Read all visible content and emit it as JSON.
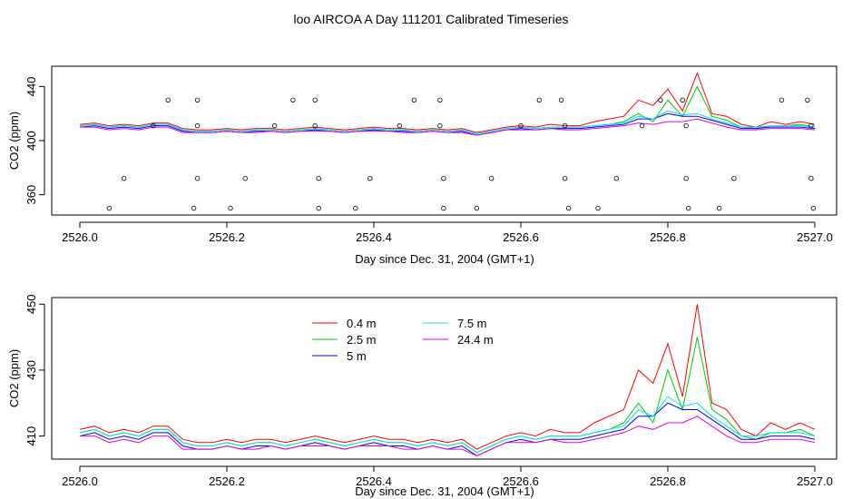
{
  "title": "loo AIRCOA A  Day 111201  Calibrated Timeseries",
  "legend": {
    "items": [
      {
        "label": "0.4 m",
        "color": "#ff0000"
      },
      {
        "label": "2.5 m",
        "color": "#00cc00"
      },
      {
        "label": "5 m",
        "color": "#0000ff"
      },
      {
        "label": "7.5 m",
        "color": "#00e5e5"
      },
      {
        "label": "24.4 m",
        "color": "#e600e6"
      }
    ]
  },
  "chart_data": [
    {
      "type": "line",
      "xlabel": "Day since Dec. 31, 2004 (GMT+1)",
      "ylabel": "CO2 (ppm)",
      "xlim": [
        2526.0,
        2527.0
      ],
      "ylim": [
        345,
        455
      ],
      "xticks": [
        "2526.0",
        "2526.2",
        "2526.4",
        "2526.6",
        "2526.8",
        "2527.0"
      ],
      "yticks": [
        "360",
        "400",
        "440"
      ],
      "ytick_values": [
        360,
        400,
        440
      ],
      "x": [
        2526.0,
        2526.02,
        2526.04,
        2526.06,
        2526.08,
        2526.1,
        2526.12,
        2526.14,
        2526.16,
        2526.18,
        2526.2,
        2526.22,
        2526.24,
        2526.26,
        2526.28,
        2526.3,
        2526.32,
        2526.34,
        2526.36,
        2526.38,
        2526.4,
        2526.42,
        2526.44,
        2526.46,
        2526.48,
        2526.5,
        2526.52,
        2526.54,
        2526.56,
        2526.58,
        2526.6,
        2526.62,
        2526.64,
        2526.66,
        2526.68,
        2526.7,
        2526.72,
        2526.74,
        2526.76,
        2526.78,
        2526.8,
        2526.82,
        2526.84,
        2526.86,
        2526.88,
        2526.9,
        2526.92,
        2526.94,
        2526.96,
        2526.98,
        2527.0
      ],
      "series": [
        {
          "values": [
            412,
            413,
            411,
            412,
            411,
            413,
            413,
            409,
            408,
            408,
            409,
            408,
            409,
            409,
            408,
            409,
            410,
            409,
            408,
            409,
            410,
            409,
            409,
            408,
            409,
            408,
            409,
            406,
            408,
            410,
            411,
            410,
            412,
            411,
            411,
            414,
            416,
            418,
            430,
            426,
            438,
            422,
            450,
            420,
            418,
            412,
            410,
            414,
            412,
            414,
            412
          ]
        },
        {
          "values": [
            411,
            412,
            410,
            411,
            410,
            412,
            412,
            408,
            407,
            407,
            408,
            407,
            408,
            408,
            407,
            408,
            409,
            408,
            407,
            408,
            409,
            408,
            408,
            407,
            408,
            407,
            408,
            405,
            407,
            409,
            410,
            409,
            410,
            410,
            410,
            411,
            412,
            414,
            420,
            414,
            430,
            418,
            440,
            418,
            415,
            410,
            409,
            411,
            411,
            412,
            410
          ]
        },
        {
          "values": [
            410,
            411,
            409,
            410,
            409,
            411,
            411,
            407,
            406,
            406,
            407,
            406,
            407,
            407,
            406,
            407,
            408,
            407,
            406,
            407,
            408,
            407,
            407,
            406,
            407,
            406,
            407,
            404,
            406,
            408,
            409,
            408,
            409,
            409,
            409,
            410,
            411,
            412,
            416,
            416,
            420,
            418,
            418,
            415,
            412,
            409,
            409,
            410,
            410,
            410,
            409
          ]
        },
        {
          "values": [
            411,
            412,
            410,
            411,
            410,
            412,
            412,
            408,
            407,
            407,
            408,
            407,
            408,
            408,
            407,
            408,
            409,
            408,
            407,
            408,
            409,
            408,
            408,
            407,
            408,
            407,
            408,
            405,
            407,
            409,
            410,
            409,
            410,
            410,
            410,
            411,
            412,
            413,
            418,
            416,
            422,
            419,
            420,
            416,
            413,
            410,
            410,
            411,
            411,
            411,
            410
          ]
        },
        {
          "values": [
            410,
            410,
            408,
            409,
            408,
            410,
            410,
            406,
            406,
            406,
            407,
            406,
            406,
            407,
            406,
            407,
            407,
            407,
            406,
            407,
            407,
            407,
            406,
            406,
            407,
            406,
            406,
            404,
            406,
            408,
            408,
            408,
            409,
            408,
            408,
            409,
            410,
            411,
            413,
            412,
            414,
            414,
            416,
            413,
            410,
            408,
            408,
            409,
            409,
            409,
            408
          ]
        }
      ],
      "markers": {
        "x": [
          2526.04,
          2526.06,
          2526.1,
          2526.12,
          2526.155,
          2526.16,
          2526.16,
          2526.16,
          2526.205,
          2526.225,
          2526.265,
          2526.29,
          2526.32,
          2526.32,
          2526.325,
          2526.325,
          2526.375,
          2526.395,
          2526.435,
          2526.455,
          2526.49,
          2526.49,
          2526.495,
          2526.495,
          2526.54,
          2526.56,
          2526.6,
          2526.625,
          2526.655,
          2526.66,
          2526.66,
          2526.665,
          2526.705,
          2526.73,
          2526.765,
          2526.79,
          2526.82,
          2526.825,
          2526.825,
          2526.828,
          2526.87,
          2526.89,
          2526.955,
          2526.99,
          2526.995,
          2526.995,
          2526.998
        ],
        "y": [
          350,
          372,
          411,
          430,
          350,
          430,
          411,
          372,
          350,
          372,
          411,
          430,
          430,
          411,
          372,
          350,
          350,
          372,
          411,
          430,
          411,
          430,
          372,
          350,
          350,
          372,
          411,
          430,
          430,
          411,
          372,
          350,
          350,
          372,
          411,
          430,
          430,
          411,
          372,
          350,
          350,
          372,
          430,
          430,
          411,
          372,
          350
        ]
      }
    },
    {
      "type": "line",
      "xlabel": "Day since Dec. 31, 2004 (GMT+1)",
      "ylabel": "CO2 (ppm)",
      "xlim": [
        2526.0,
        2527.0
      ],
      "ylim": [
        403,
        452
      ],
      "xticks": [
        "2526.0",
        "2526.2",
        "2526.4",
        "2526.6",
        "2526.8",
        "2527.0"
      ],
      "yticks": [
        "410",
        "430",
        "450"
      ],
      "ytick_values": [
        410,
        430,
        450
      ],
      "x": [
        2526.0,
        2526.02,
        2526.04,
        2526.06,
        2526.08,
        2526.1,
        2526.12,
        2526.14,
        2526.16,
        2526.18,
        2526.2,
        2526.22,
        2526.24,
        2526.26,
        2526.28,
        2526.3,
        2526.32,
        2526.34,
        2526.36,
        2526.38,
        2526.4,
        2526.42,
        2526.44,
        2526.46,
        2526.48,
        2526.5,
        2526.52,
        2526.54,
        2526.56,
        2526.58,
        2526.6,
        2526.62,
        2526.64,
        2526.66,
        2526.68,
        2526.7,
        2526.72,
        2526.74,
        2526.76,
        2526.78,
        2526.8,
        2526.82,
        2526.84,
        2526.86,
        2526.88,
        2526.9,
        2526.92,
        2526.94,
        2526.96,
        2526.98,
        2527.0
      ],
      "series": [
        {
          "name": "0.4 m",
          "values": [
            412,
            413,
            411,
            412,
            411,
            413,
            413,
            409,
            408,
            408,
            409,
            408,
            409,
            409,
            408,
            409,
            410,
            409,
            408,
            409,
            410,
            409,
            409,
            408,
            409,
            408,
            409,
            406,
            408,
            410,
            411,
            410,
            412,
            411,
            411,
            414,
            416,
            418,
            430,
            426,
            438,
            422,
            450,
            420,
            418,
            412,
            410,
            414,
            412,
            414,
            412
          ]
        },
        {
          "name": "2.5 m",
          "values": [
            411,
            412,
            410,
            411,
            410,
            412,
            412,
            408,
            407,
            407,
            408,
            407,
            408,
            408,
            407,
            408,
            409,
            408,
            407,
            408,
            409,
            408,
            408,
            407,
            408,
            407,
            408,
            405,
            407,
            409,
            410,
            409,
            410,
            410,
            410,
            411,
            412,
            414,
            420,
            414,
            430,
            418,
            440,
            418,
            415,
            410,
            409,
            411,
            411,
            412,
            410
          ]
        },
        {
          "name": "5 m",
          "values": [
            410,
            411,
            409,
            410,
            409,
            411,
            411,
            407,
            406,
            406,
            407,
            406,
            407,
            407,
            406,
            407,
            408,
            407,
            406,
            407,
            408,
            407,
            407,
            406,
            407,
            406,
            407,
            404,
            406,
            408,
            409,
            408,
            409,
            409,
            409,
            410,
            411,
            412,
            416,
            416,
            420,
            418,
            418,
            415,
            412,
            409,
            409,
            410,
            410,
            410,
            409
          ]
        },
        {
          "name": "7.5 m",
          "values": [
            411,
            412,
            410,
            411,
            410,
            412,
            412,
            408,
            407,
            407,
            408,
            407,
            408,
            408,
            407,
            408,
            409,
            408,
            407,
            408,
            409,
            408,
            408,
            407,
            408,
            407,
            408,
            405,
            407,
            409,
            410,
            409,
            410,
            410,
            410,
            411,
            412,
            413,
            418,
            416,
            422,
            419,
            420,
            416,
            413,
            410,
            410,
            411,
            411,
            411,
            410
          ]
        },
        {
          "name": "24.4 m",
          "values": [
            410,
            410,
            408,
            409,
            408,
            410,
            410,
            406,
            406,
            406,
            407,
            406,
            406,
            407,
            406,
            407,
            407,
            407,
            406,
            407,
            407,
            407,
            406,
            406,
            407,
            406,
            406,
            404,
            406,
            408,
            408,
            408,
            409,
            408,
            408,
            409,
            410,
            411,
            413,
            412,
            414,
            414,
            416,
            413,
            410,
            408,
            408,
            409,
            409,
            409,
            408
          ]
        }
      ]
    }
  ]
}
